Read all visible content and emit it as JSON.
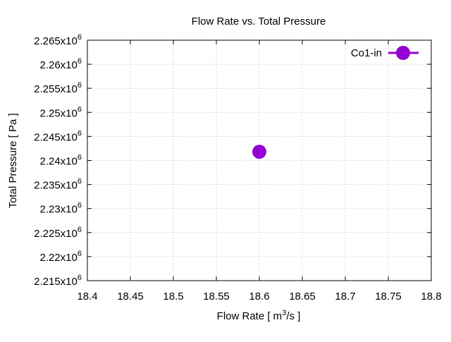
{
  "chart_data": {
    "type": "scatter",
    "title": "Flow Rate vs. Total Pressure",
    "xlabel": "Flow Rate [ m3/s ]",
    "xlabel_parts": {
      "pre": "Flow Rate [ m",
      "sup": "3",
      "post": "/s ]"
    },
    "ylabel": "Total Pressure [ Pa ]",
    "xlim": [
      18.4,
      18.8
    ],
    "ylim": [
      2215000,
      2265000
    ],
    "xticks": [
      18.4,
      18.45,
      18.5,
      18.55,
      18.6,
      18.65,
      18.7,
      18.75,
      18.8
    ],
    "xtick_labels": [
      "18.4",
      "18.45",
      "18.5",
      "18.55",
      "18.6",
      "18.65",
      "18.7",
      "18.75",
      "18.8"
    ],
    "yticks": [
      2215000,
      2220000,
      2225000,
      2230000,
      2235000,
      2240000,
      2245000,
      2250000,
      2255000,
      2260000,
      2265000
    ],
    "ytick_labels": [
      "2.215x10",
      "2.22x10",
      "2.225x10",
      "2.23x10",
      "2.235x10",
      "2.24x10",
      "2.245x10",
      "2.25x10",
      "2.255x10",
      "2.26x10",
      "2.265x10"
    ],
    "ytick_exponent": "6",
    "grid": true,
    "legend_position": "top-right",
    "series": [
      {
        "name": "Co1-in",
        "color": "#9400d3",
        "x": [
          18.6
        ],
        "y": [
          2241800
        ]
      }
    ]
  }
}
